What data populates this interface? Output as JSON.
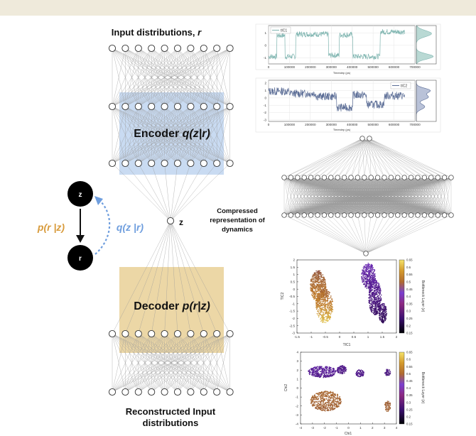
{
  "labels": {
    "input_title": "Input distributions,",
    "input_var": "r",
    "encoder_label": "Encoder",
    "encoder_math": "q(z|r)",
    "decoder_label": "Decoder",
    "decoder_math": "p(r|z)",
    "latent_label": "z",
    "compressed_line1": "Compressed",
    "compressed_line2": "representation of",
    "compressed_line3": "dynamics",
    "output_line1": "Reconstructed Input",
    "output_line2": "distributions",
    "gm_z": "z",
    "gm_r": "r",
    "gm_p": "p(r |z)",
    "gm_q": "q(z |r)"
  },
  "colors": {
    "encoder_box": "#c9dbf2",
    "decoder_box": "#ecd7a6",
    "p_label": "#d89b3c",
    "q_label": "#6f9ede",
    "q_arrow": "#6f9ede",
    "tic1_line": "#7fb5b0",
    "tic2_line": "#5a6c95"
  },
  "ts_plots": [
    {
      "legend": "tIC1",
      "xlabel": "Timestep (ps)",
      "yticks": [
        "1",
        "0",
        "-1"
      ],
      "xticks": [
        "0",
        "100000",
        "200000",
        "300000",
        "400000",
        "500000",
        "600000",
        "700000"
      ]
    },
    {
      "legend": "tIC2",
      "xlabel": "Timestep (ps)",
      "yticks": [
        "2",
        "1",
        "0",
        "-1",
        "-2",
        "-3"
      ],
      "xticks": [
        "0",
        "100000",
        "200000",
        "300000",
        "400000",
        "500000",
        "600000",
        "700000"
      ]
    }
  ],
  "scatter_plots": [
    {
      "xlabel": "TIC1",
      "ylabel": "TIC2",
      "cbar_label": "Bottleneck Layer (z)",
      "xticks": [
        "-1.5",
        "-1",
        "-0.5",
        "0",
        "0.5",
        "1",
        "1.5",
        "2"
      ],
      "yticks": [
        "2",
        "1.5",
        "1",
        "0.5",
        "0",
        "-0.5",
        "-1",
        "-1.5",
        "-2",
        "-2.5",
        "-3"
      ],
      "cbar_ticks": [
        "0.65",
        "0.6",
        "0.55",
        "0.5",
        "0.45",
        "0.4",
        "0.35",
        "0.3",
        "0.25",
        "0.2",
        "0.15"
      ]
    },
    {
      "xlabel": "Chi1",
      "ylabel": "Chi2",
      "cbar_label": "Bottleneck Layer (z)",
      "xticks": [
        "-4",
        "-3",
        "-2",
        "-1",
        "0",
        "1",
        "2",
        "3",
        "4"
      ],
      "yticks": [
        "4",
        "3",
        "2",
        "1",
        "0",
        "-1",
        "-2",
        "-3",
        "-4"
      ],
      "cbar_ticks": [
        "0.65",
        "0.6",
        "0.55",
        "0.5",
        "0.45",
        "0.4",
        "0.35",
        "0.3",
        "0.25",
        "0.2",
        "0.15"
      ]
    }
  ]
}
